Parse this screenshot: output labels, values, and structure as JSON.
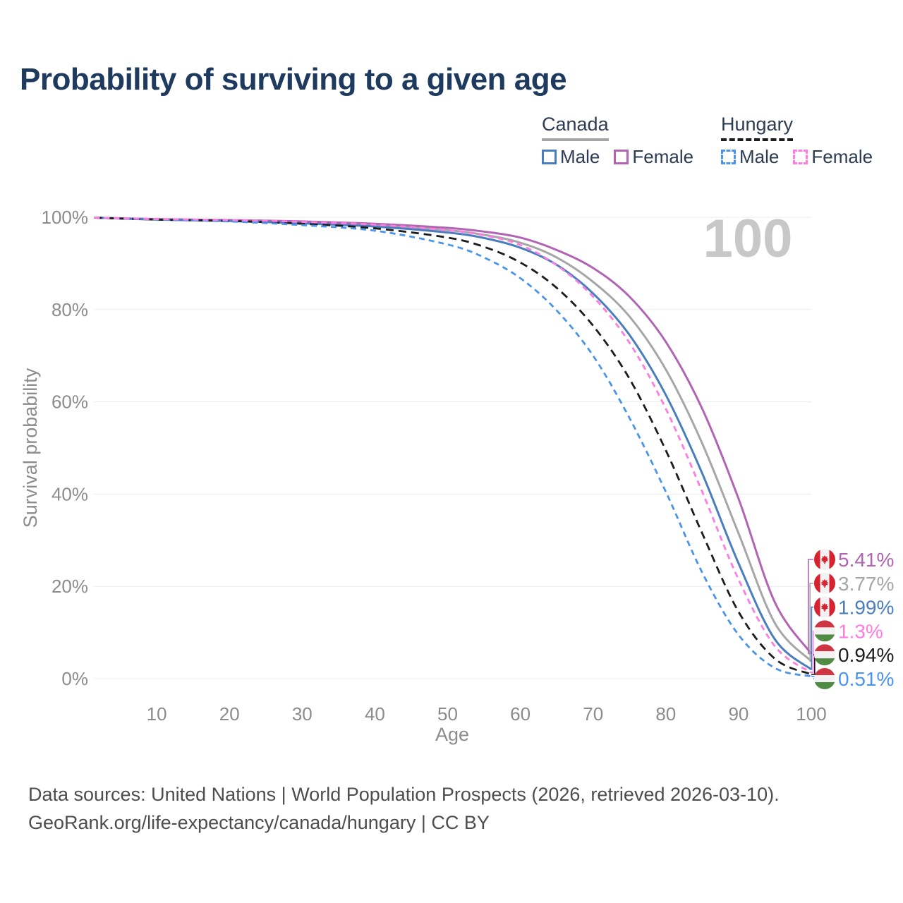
{
  "title": "Probability of surviving to a given age",
  "watermark": "100",
  "legend": {
    "groups": [
      {
        "label": "Canada",
        "line_style": "solid",
        "line_color": "#a6a6a6",
        "items": [
          {
            "label": "Male",
            "color": "#4a7dbe",
            "dashed": false
          },
          {
            "label": "Female",
            "color": "#b164b4",
            "dashed": false
          }
        ]
      },
      {
        "label": "Hungary",
        "line_style": "dashed",
        "line_color": "#1c1c1c",
        "items": [
          {
            "label": "Male",
            "color": "#4a94ea",
            "dashed": true
          },
          {
            "label": "Female",
            "color": "#ff7de2",
            "dashed": true
          }
        ]
      }
    ]
  },
  "chart_data": {
    "type": "line",
    "title": "Probability of surviving to a given age",
    "xlabel": "Age",
    "ylabel": "Survival probability",
    "xlim": [
      0,
      100
    ],
    "ylim": [
      0,
      100
    ],
    "grid": true,
    "legend_position": "top-right",
    "x_ticks": [
      10,
      20,
      30,
      40,
      50,
      60,
      70,
      80,
      90,
      100
    ],
    "y_ticks": [
      {
        "label": "100%",
        "value": 100
      },
      {
        "label": "80%",
        "value": 80
      },
      {
        "label": "60%",
        "value": 60
      },
      {
        "label": "40%",
        "value": 40
      },
      {
        "label": "20%",
        "value": 20
      },
      {
        "label": "0%",
        "value": 0
      }
    ],
    "x": [
      0,
      10,
      20,
      30,
      40,
      50,
      55,
      60,
      65,
      70,
      75,
      80,
      85,
      90,
      95,
      100
    ],
    "series": [
      {
        "name": "Canada Female",
        "key": "canada-female",
        "country": "Canada",
        "sex": "Female",
        "color": "#b164b4",
        "dashed": false,
        "flag": "canada",
        "end_label": "5.41%",
        "values": [
          100,
          99.6,
          99.4,
          99.1,
          98.6,
          97.7,
          96.9,
          95.6,
          92.9,
          89.0,
          82.8,
          73.0,
          58.5,
          39.0,
          16.5,
          5.41
        ]
      },
      {
        "name": "Canada Both sexes",
        "key": "canada-both",
        "country": "Canada",
        "sex": "Both",
        "color": "#a6a6a6",
        "dashed": false,
        "flag": "canada",
        "end_label": "3.77%",
        "values": [
          100,
          99.5,
          99.3,
          98.9,
          98.3,
          97.2,
          96.2,
          94.5,
          91.3,
          86.0,
          78.5,
          67.0,
          51.0,
          31.5,
          12.0,
          3.77
        ]
      },
      {
        "name": "Canada Male",
        "key": "canada-male",
        "country": "Canada",
        "sex": "Male",
        "color": "#4a7dbe",
        "dashed": false,
        "flag": "canada",
        "end_label": "1.99%",
        "values": [
          100,
          99.5,
          99.2,
          98.7,
          98.0,
          96.7,
          95.5,
          93.4,
          89.7,
          83.5,
          74.5,
          61.5,
          44.5,
          25.0,
          8.5,
          1.99
        ]
      },
      {
        "name": "Hungary Female",
        "key": "hungary-female",
        "country": "Hungary",
        "sex": "Female",
        "color": "#ff7de2",
        "dashed": true,
        "flag": "hungary",
        "end_label": "1.3%",
        "values": [
          100,
          99.6,
          99.4,
          99.0,
          98.4,
          97.2,
          96.1,
          94.0,
          89.6,
          82.8,
          72.8,
          58.5,
          40.5,
          21.5,
          7.0,
          1.3
        ]
      },
      {
        "name": "Hungary Both sexes",
        "key": "hungary-both",
        "country": "Hungary",
        "sex": "Both",
        "color": "#1c1c1c",
        "dashed": true,
        "flag": "hungary",
        "end_label": "0.94%",
        "values": [
          100,
          99.5,
          99.2,
          98.6,
          97.6,
          95.6,
          93.6,
          90.2,
          84.7,
          76.5,
          65.0,
          49.5,
          31.5,
          14.5,
          4.3,
          0.94
        ]
      },
      {
        "name": "Hungary Male",
        "key": "hungary-male",
        "country": "Hungary",
        "sex": "Male",
        "color": "#4a94ea",
        "dashed": true,
        "flag": "hungary",
        "end_label": "0.51%",
        "values": [
          100,
          99.5,
          99.1,
          98.3,
          97.1,
          94.1,
          91.3,
          86.8,
          79.8,
          70.0,
          56.5,
          40.5,
          23.0,
          9.5,
          2.3,
          0.51
        ]
      }
    ]
  },
  "colors": {
    "title": "#1e3a5f",
    "grid": "#ececec",
    "axis_text": "#8c8c8c",
    "watermark": "#c8c8c8",
    "footer_text": "#4d4d4d",
    "canada_red": "#d7232f",
    "hungary_red": "#cd3642",
    "hungary_green": "#508b44",
    "flag_white": "#f2f2f2"
  },
  "footer": {
    "line1": "Data sources: United Nations | World Population Prospects (2026, retrieved 2026-03-10).",
    "line2": "GeoRank.org/life-expectancy/canada/hungary | CC BY"
  }
}
